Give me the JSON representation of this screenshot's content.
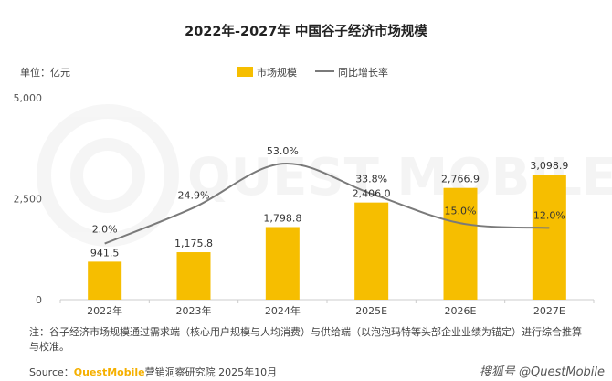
{
  "title": "2022年-2027年 中国谷子经济市场规模",
  "unit_label": "单位：亿元",
  "colors": {
    "bar": "#F6BE00",
    "bar_light": "#FFD21F",
    "line": "#7a7a7a",
    "axis": "#cccccc",
    "brand": "#F5B000"
  },
  "chart_data": {
    "type": "bar",
    "categories": [
      "2022年",
      "2023年",
      "2024年",
      "2025E",
      "2026E",
      "2027E"
    ],
    "series": [
      {
        "name": "市场规模",
        "type": "bar",
        "values": [
          941.5,
          1175.8,
          1798.8,
          2406.0,
          2766.9,
          3098.9
        ],
        "labels": [
          "941.5",
          "1,175.8",
          "1,798.8",
          "2,406.0",
          "2,766.9",
          "3,098.9"
        ]
      },
      {
        "name": "同比增长率",
        "type": "line",
        "values": [
          2.0,
          24.9,
          53.0,
          33.8,
          15.0,
          12.0
        ],
        "labels": [
          "2.0%",
          "24.9%",
          "53.0%",
          "33.8%",
          "15.0%",
          "12.0%"
        ]
      }
    ],
    "ylim": [
      0,
      5000
    ],
    "yticks": [
      0,
      2500,
      5000
    ],
    "ytick_labels": [
      "0",
      "2,500",
      "5,000"
    ],
    "legend_position": "top-center"
  },
  "note": "注：谷子经济市场规模通过需求端（核心用户规模与人均消费）与供给端（以泡泡玛特等头部企业业绩为锚定）进行综合推算与校准。",
  "source": {
    "label": "Source：",
    "brand": "QuestMobile",
    "text": "营销洞察研究院 2025年10月"
  },
  "watermark": {
    "logo_text": "QUEST MOBILE",
    "corner_text": "搜狐号 @QuestMobile"
  }
}
